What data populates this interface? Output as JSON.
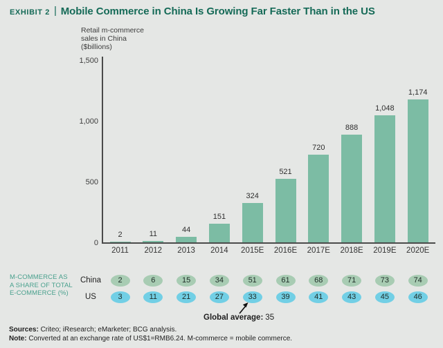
{
  "header": {
    "exhibit_label": "Exhibit 2",
    "separator": "|",
    "title": "Mobile Commerce in China Is Growing Far Faster Than in the US"
  },
  "chart_data": {
    "type": "bar",
    "title": "Mobile Commerce in China Is Growing Far Faster Than in the US",
    "ylabel": "Retail m-commerce\nsales in China\n($billions)",
    "xlabel": "",
    "categories": [
      "2011",
      "2012",
      "2013",
      "2014",
      "2015E",
      "2016E",
      "2017E",
      "2018E",
      "2019E",
      "2020E"
    ],
    "values": [
      2,
      11,
      44,
      151,
      324,
      521,
      720,
      888,
      1048,
      1174
    ],
    "value_labels": [
      "2",
      "11",
      "44",
      "151",
      "324",
      "521",
      "720",
      "888",
      "1,048",
      "1,174"
    ],
    "ylim": [
      0,
      1500
    ],
    "yticks": [
      {
        "value": 0,
        "label": "0"
      },
      {
        "value": 500,
        "label": "500"
      },
      {
        "value": 1000,
        "label": "1,000"
      },
      {
        "value": 1500,
        "label": "1,500"
      }
    ],
    "grid": false,
    "bar_color": "#7cbca4"
  },
  "share_table": {
    "section_label": "M-COMMERCE AS\nA SHARE OF TOTAL\nE-COMMERCE (%)",
    "rows": [
      {
        "name": "China",
        "color": "#a8ccb3",
        "values": [
          2,
          6,
          15,
          34,
          51,
          61,
          68,
          71,
          73,
          74
        ]
      },
      {
        "name": "US",
        "color": "#72cfe5",
        "values": [
          3,
          11,
          21,
          27,
          33,
          39,
          41,
          43,
          45,
          46
        ]
      }
    ],
    "annotation": {
      "label": "Global average:",
      "value": "35"
    }
  },
  "footer": {
    "sources_label": "Sources:",
    "sources_text": " Criteo; iResearch; eMarketer; BCG analysis.",
    "note_label": "Note:",
    "note_text": " Converted at an exchange rate of US$1=RMB6.24. M-commerce = mobile commerce."
  },
  "colors": {
    "background": "#e5e7e5",
    "title_green": "#156a57",
    "bar_green": "#7cbca4",
    "china_oval": "#a8ccb3",
    "us_oval": "#72cfe5",
    "share_label_teal": "#49a08d",
    "axis_dark": "#4a4a4a"
  }
}
